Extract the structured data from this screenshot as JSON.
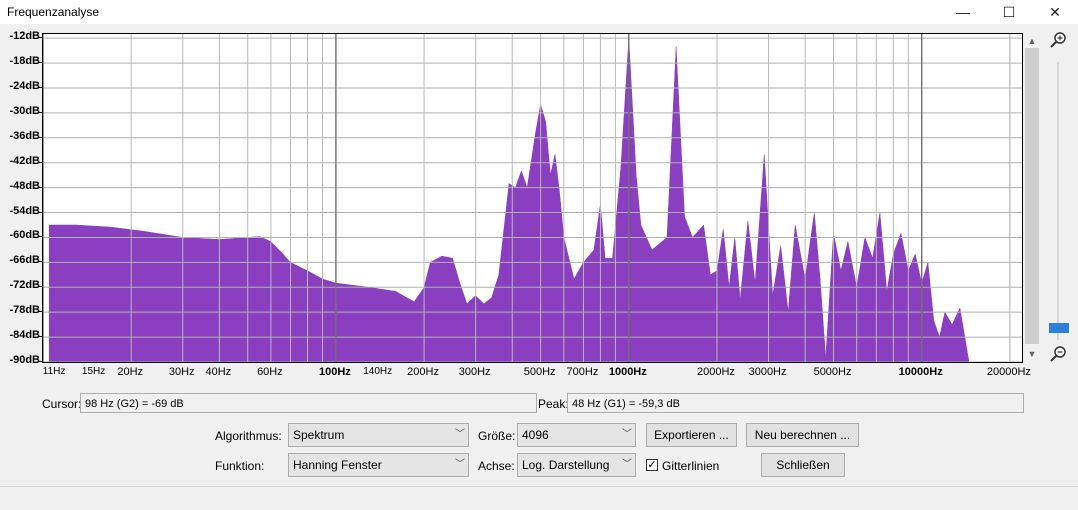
{
  "window": {
    "title": "Frequenzanalyse",
    "minimize_glyph": "—",
    "maximize_glyph": "☐",
    "close_glyph": "✕"
  },
  "chart_data": {
    "type": "area",
    "xscale": "log",
    "xlim": [
      10,
      22000
    ],
    "ylim": [
      -90,
      -11
    ],
    "grid": true,
    "fill_color": "#8a3fc0",
    "y_ticks": [
      {
        "label": "-12dB",
        "value": -12
      },
      {
        "label": "-18dB",
        "value": -18
      },
      {
        "label": "-24dB",
        "value": -24
      },
      {
        "label": "-30dB",
        "value": -30
      },
      {
        "label": "-36dB",
        "value": -36
      },
      {
        "label": "-42dB",
        "value": -42
      },
      {
        "label": "-48dB",
        "value": -48
      },
      {
        "label": "-54dB",
        "value": -54
      },
      {
        "label": "-60dB",
        "value": -60
      },
      {
        "label": "-66dB",
        "value": -66
      },
      {
        "label": "-72dB",
        "value": -72
      },
      {
        "label": "-78dB",
        "value": -78
      },
      {
        "label": "-84dB",
        "value": -84
      },
      {
        "label": "-90dB",
        "value": -90
      }
    ],
    "x_ticks": [
      {
        "label": "11Hz",
        "value": 11,
        "small": true
      },
      {
        "label": "15Hz",
        "value": 15,
        "small": true
      },
      {
        "label": "20Hz",
        "value": 20
      },
      {
        "label": "30Hz",
        "value": 30
      },
      {
        "label": "40Hz",
        "value": 40
      },
      {
        "label": "60Hz",
        "value": 60
      },
      {
        "label": "100Hz",
        "value": 100,
        "bold": true
      },
      {
        "label": "140Hz",
        "value": 140,
        "small": true
      },
      {
        "label": "200Hz",
        "value": 200
      },
      {
        "label": "300Hz",
        "value": 300
      },
      {
        "label": "500Hz",
        "value": 500
      },
      {
        "label": "700Hz",
        "value": 700
      },
      {
        "label": "1000Hz",
        "value": 1000,
        "bold": true
      },
      {
        "label": "2000Hz",
        "value": 2000
      },
      {
        "label": "3000Hz",
        "value": 3000
      },
      {
        "label": "5000Hz",
        "value": 5000
      },
      {
        "label": "10000Hz",
        "value": 10000,
        "bold": true
      },
      {
        "label": "20000Hz",
        "value": 20000
      }
    ],
    "spectrum": [
      [
        10.5,
        -57
      ],
      [
        13,
        -57
      ],
      [
        17,
        -57.5
      ],
      [
        22,
        -58.5
      ],
      [
        30,
        -60
      ],
      [
        40,
        -60.5
      ],
      [
        50,
        -60
      ],
      [
        55,
        -59.8
      ],
      [
        60,
        -61
      ],
      [
        65,
        -63.5
      ],
      [
        70,
        -66
      ],
      [
        80,
        -68
      ],
      [
        90,
        -70
      ],
      [
        100,
        -71
      ],
      [
        130,
        -72
      ],
      [
        160,
        -73
      ],
      [
        185,
        -75.5
      ],
      [
        200,
        -72
      ],
      [
        210,
        -66
      ],
      [
        230,
        -64.5
      ],
      [
        250,
        -65
      ],
      [
        265,
        -71
      ],
      [
        280,
        -76
      ],
      [
        300,
        -74
      ],
      [
        320,
        -76
      ],
      [
        340,
        -74.5
      ],
      [
        360,
        -69
      ],
      [
        390,
        -47
      ],
      [
        410,
        -48
      ],
      [
        430,
        -44
      ],
      [
        450,
        -48
      ],
      [
        480,
        -35
      ],
      [
        500,
        -28
      ],
      [
        520,
        -32
      ],
      [
        540,
        -45
      ],
      [
        560,
        -40
      ],
      [
        580,
        -49
      ],
      [
        600,
        -60
      ],
      [
        650,
        -70
      ],
      [
        700,
        -66
      ],
      [
        760,
        -63
      ],
      [
        800,
        -52
      ],
      [
        830,
        -65
      ],
      [
        880,
        -65
      ],
      [
        940,
        -43
      ],
      [
        1000,
        -12
      ],
      [
        1060,
        -45
      ],
      [
        1100,
        -57
      ],
      [
        1200,
        -63
      ],
      [
        1350,
        -60
      ],
      [
        1450,
        -14
      ],
      [
        1550,
        -55
      ],
      [
        1650,
        -60
      ],
      [
        1800,
        -57
      ],
      [
        1900,
        -69
      ],
      [
        2000,
        -68
      ],
      [
        2100,
        -58
      ],
      [
        2200,
        -72
      ],
      [
        2300,
        -60
      ],
      [
        2400,
        -75
      ],
      [
        2550,
        -56
      ],
      [
        2700,
        -71
      ],
      [
        2900,
        -40
      ],
      [
        3100,
        -74
      ],
      [
        3300,
        -62
      ],
      [
        3500,
        -78
      ],
      [
        3700,
        -57
      ],
      [
        4000,
        -70
      ],
      [
        4300,
        -54
      ],
      [
        4500,
        -70
      ],
      [
        4700,
        -89
      ],
      [
        5000,
        -59
      ],
      [
        5300,
        -68
      ],
      [
        5600,
        -61
      ],
      [
        6000,
        -72
      ],
      [
        6400,
        -60
      ],
      [
        6800,
        -65
      ],
      [
        7200,
        -54
      ],
      [
        7600,
        -73
      ],
      [
        8000,
        -64
      ],
      [
        8500,
        -59
      ],
      [
        9000,
        -68
      ],
      [
        9500,
        -64
      ],
      [
        10000,
        -71
      ],
      [
        10500,
        -66
      ],
      [
        11000,
        -80
      ],
      [
        11500,
        -84
      ],
      [
        12000,
        -78
      ],
      [
        12700,
        -81
      ],
      [
        13500,
        -77
      ],
      [
        14500,
        -90
      ]
    ]
  },
  "controls": {
    "cursor_label": "Cursor:",
    "cursor_value": "98 Hz (G2) = -69 dB",
    "peak_label": "Peak:",
    "peak_value": "48 Hz (G1) = -59,3 dB",
    "algorithm_label": "Algorithmus:",
    "algorithm_value": "Spektrum",
    "size_label": "Größe:",
    "size_value": "4096",
    "export_label": "Exportieren ...",
    "recalc_label": "Neu berechnen ...",
    "function_label": "Funktion:",
    "function_value": "Hanning Fenster",
    "axis_label": "Achse:",
    "axis_value": "Log. Darstellung",
    "grid_label": "Gitterlinien",
    "grid_checked": true,
    "close_label": "Schließen"
  }
}
